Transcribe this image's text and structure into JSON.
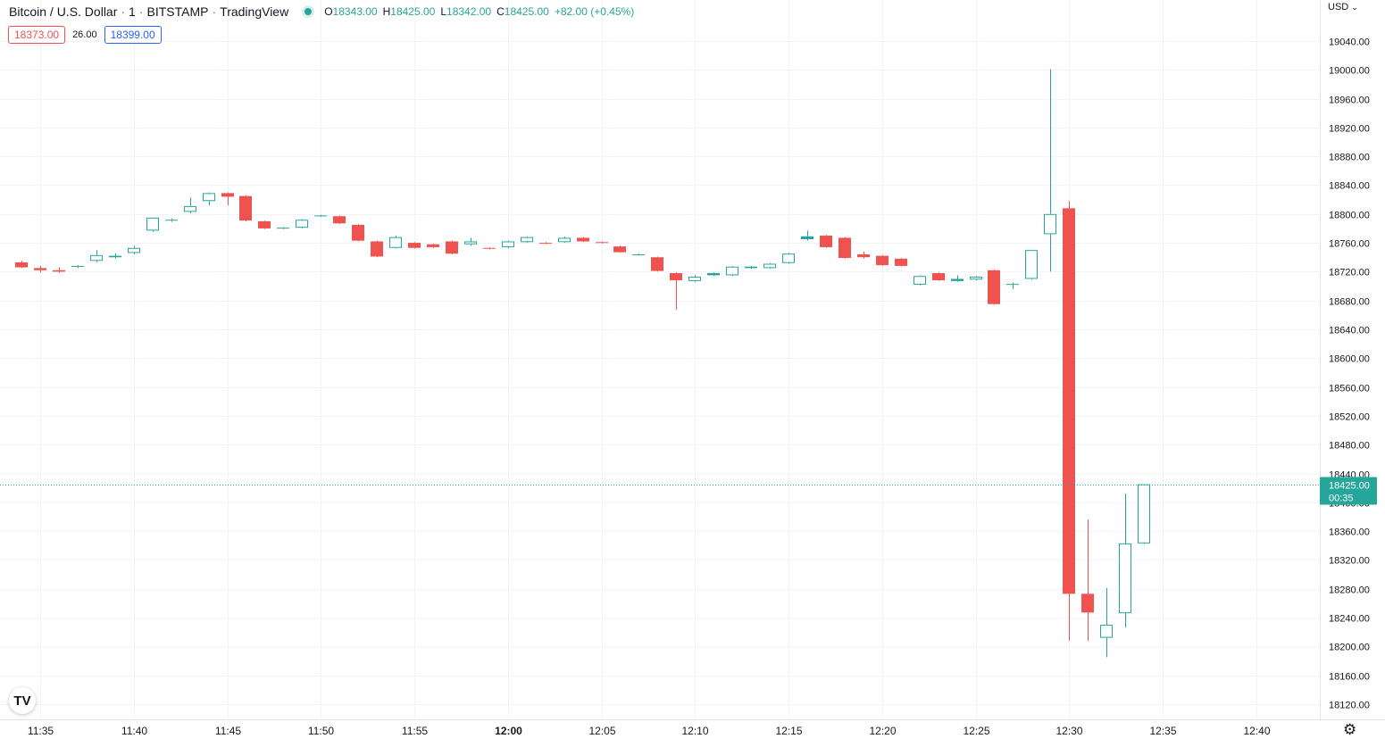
{
  "header": {
    "symbol_name": "Bitcoin / U.S. Dollar",
    "interval": "1",
    "exchange": "BITSTAMP",
    "provider": "TradingView",
    "open_label": "O",
    "open_value": "18343.00",
    "high_label": "H",
    "high_value": "18425.00",
    "low_label": "L",
    "low_value": "18342.00",
    "close_label": "C",
    "close_value": "18425.00",
    "change": "+82.00 (+0.45%)"
  },
  "quote": {
    "sell": "18373.00",
    "spread": "26.00",
    "buy": "18399.00"
  },
  "currency": "USD",
  "logo_text": "TV",
  "icons": {
    "currency_dropdown": "chevron-down-icon",
    "settings": "gear-icon",
    "status": "status-dot-icon"
  },
  "colors": {
    "up": "#26a69a",
    "down": "#ef5350",
    "grid": "#f0f3fa",
    "text": "#131722"
  },
  "chart_data": {
    "type": "candlestick",
    "y_axis_ticks": [
      18120,
      18160,
      18200,
      18240,
      18280,
      18320,
      18360,
      18400,
      18440,
      18480,
      18520,
      18560,
      18600,
      18640,
      18680,
      18720,
      18760,
      18800,
      18840,
      18880,
      18920,
      18960,
      19000,
      19040
    ],
    "y_tick_labels": [
      "18120.00",
      "18160.00",
      "18200.00",
      "18240.00",
      "18280.00",
      "18320.00",
      "18360.00",
      "18400.00",
      "18440.00",
      "18480.00",
      "18520.00",
      "18560.00",
      "18600.00",
      "18640.00",
      "18680.00",
      "18720.00",
      "18760.00",
      "18800.00",
      "18840.00",
      "18880.00",
      "18920.00",
      "18960.00",
      "19000.00",
      "19040.00"
    ],
    "ylim": [
      18100,
      19080
    ],
    "x_tick_labels": [
      "11:35",
      "11:40",
      "11:45",
      "11:50",
      "11:55",
      "12:00",
      "12:05",
      "12:10",
      "12:15",
      "12:20",
      "12:25",
      "12:30",
      "12:35",
      "12:40"
    ],
    "last_price": {
      "value": 18425.0,
      "label": "18425.00",
      "countdown": "00:35"
    },
    "candles": [
      {
        "t": "11:34",
        "o": 18733,
        "h": 18735,
        "l": 18725,
        "c": 18726
      },
      {
        "t": "11:35",
        "o": 18725,
        "h": 18728,
        "l": 18719,
        "c": 18722
      },
      {
        "t": "11:36",
        "o": 18722,
        "h": 18726,
        "l": 18718,
        "c": 18720
      },
      {
        "t": "11:37",
        "o": 18727,
        "h": 18729,
        "l": 18725,
        "c": 18728
      },
      {
        "t": "11:38",
        "o": 18735,
        "h": 18750,
        "l": 18733,
        "c": 18743
      },
      {
        "t": "11:39",
        "o": 18740,
        "h": 18745,
        "l": 18738,
        "c": 18742
      },
      {
        "t": "11:40",
        "o": 18746,
        "h": 18756,
        "l": 18744,
        "c": 18753
      },
      {
        "t": "11:41",
        "o": 18777,
        "h": 18795,
        "l": 18775,
        "c": 18795
      },
      {
        "t": "11:42",
        "o": 18792,
        "h": 18794,
        "l": 18789,
        "c": 18792
      },
      {
        "t": "11:43",
        "o": 18803,
        "h": 18823,
        "l": 18801,
        "c": 18811
      },
      {
        "t": "11:44",
        "o": 18818,
        "h": 18830,
        "l": 18812,
        "c": 18829
      },
      {
        "t": "11:45",
        "o": 18829,
        "h": 18830,
        "l": 18812,
        "c": 18824
      },
      {
        "t": "11:46",
        "o": 18825,
        "h": 18826,
        "l": 18790,
        "c": 18791
      },
      {
        "t": "11:47",
        "o": 18790,
        "h": 18791,
        "l": 18779,
        "c": 18780
      },
      {
        "t": "11:48",
        "o": 18780,
        "h": 18782,
        "l": 18779,
        "c": 18781
      },
      {
        "t": "11:49",
        "o": 18781,
        "h": 18793,
        "l": 18780,
        "c": 18792
      },
      {
        "t": "11:50",
        "o": 18797,
        "h": 18799,
        "l": 18796,
        "c": 18798
      },
      {
        "t": "11:51",
        "o": 18797,
        "h": 18798,
        "l": 18786,
        "c": 18787
      },
      {
        "t": "11:52",
        "o": 18785,
        "h": 18786,
        "l": 18762,
        "c": 18763
      },
      {
        "t": "11:53",
        "o": 18762,
        "h": 18763,
        "l": 18740,
        "c": 18741
      },
      {
        "t": "11:54",
        "o": 18753,
        "h": 18770,
        "l": 18752,
        "c": 18768
      },
      {
        "t": "11:55",
        "o": 18760,
        "h": 18761,
        "l": 18752,
        "c": 18753
      },
      {
        "t": "11:56",
        "o": 18758,
        "h": 18759,
        "l": 18753,
        "c": 18754
      },
      {
        "t": "11:57",
        "o": 18762,
        "h": 18763,
        "l": 18744,
        "c": 18745
      },
      {
        "t": "11:58",
        "o": 18758,
        "h": 18767,
        "l": 18756,
        "c": 18762
      },
      {
        "t": "11:59",
        "o": 18753,
        "h": 18754,
        "l": 18751,
        "c": 18752
      },
      {
        "t": "12:00",
        "o": 18754,
        "h": 18763,
        "l": 18752,
        "c": 18762
      },
      {
        "t": "12:01",
        "o": 18761,
        "h": 18769,
        "l": 18760,
        "c": 18768
      },
      {
        "t": "12:02",
        "o": 18760,
        "h": 18761,
        "l": 18758,
        "c": 18759
      },
      {
        "t": "12:03",
        "o": 18761,
        "h": 18769,
        "l": 18760,
        "c": 18767
      },
      {
        "t": "12:04",
        "o": 18767,
        "h": 18768,
        "l": 18761,
        "c": 18762
      },
      {
        "t": "12:05",
        "o": 18761,
        "h": 18762,
        "l": 18759,
        "c": 18760
      },
      {
        "t": "12:06",
        "o": 18755,
        "h": 18756,
        "l": 18746,
        "c": 18747
      },
      {
        "t": "12:07",
        "o": 18744,
        "h": 18745,
        "l": 18743,
        "c": 18744
      },
      {
        "t": "12:08",
        "o": 18740,
        "h": 18741,
        "l": 18720,
        "c": 18721
      },
      {
        "t": "12:09",
        "o": 18718,
        "h": 18719,
        "l": 18667,
        "c": 18708
      },
      {
        "t": "12:10",
        "o": 18707,
        "h": 18715,
        "l": 18706,
        "c": 18713
      },
      {
        "t": "12:11",
        "o": 18715,
        "h": 18719,
        "l": 18714,
        "c": 18718
      },
      {
        "t": "12:12",
        "o": 18715,
        "h": 18728,
        "l": 18714,
        "c": 18727
      },
      {
        "t": "12:13",
        "o": 18725,
        "h": 18728,
        "l": 18724,
        "c": 18727
      },
      {
        "t": "12:14",
        "o": 18725,
        "h": 18732,
        "l": 18724,
        "c": 18731
      },
      {
        "t": "12:15",
        "o": 18732,
        "h": 18746,
        "l": 18731,
        "c": 18745
      },
      {
        "t": "12:16",
        "o": 18765,
        "h": 18777,
        "l": 18763,
        "c": 18769
      },
      {
        "t": "12:17",
        "o": 18770,
        "h": 18771,
        "l": 18753,
        "c": 18754
      },
      {
        "t": "12:18",
        "o": 18767,
        "h": 18768,
        "l": 18738,
        "c": 18739
      },
      {
        "t": "12:19",
        "o": 18744,
        "h": 18748,
        "l": 18738,
        "c": 18740
      },
      {
        "t": "12:20",
        "o": 18742,
        "h": 18743,
        "l": 18728,
        "c": 18729
      },
      {
        "t": "12:21",
        "o": 18738,
        "h": 18739,
        "l": 18727,
        "c": 18728
      },
      {
        "t": "12:22",
        "o": 18702,
        "h": 18715,
        "l": 18701,
        "c": 18714
      },
      {
        "t": "12:23",
        "o": 18718,
        "h": 18719,
        "l": 18707,
        "c": 18708
      },
      {
        "t": "12:24",
        "o": 18707,
        "h": 18715,
        "l": 18706,
        "c": 18710
      },
      {
        "t": "12:25",
        "o": 18709,
        "h": 18714,
        "l": 18708,
        "c": 18713
      },
      {
        "t": "12:26",
        "o": 18722,
        "h": 18723,
        "l": 18674,
        "c": 18675
      },
      {
        "t": "12:27",
        "o": 18702,
        "h": 18705,
        "l": 18696,
        "c": 18703
      },
      {
        "t": "12:28",
        "o": 18710,
        "h": 18750,
        "l": 18709,
        "c": 18750
      },
      {
        "t": "12:29",
        "o": 18772,
        "h": 19001,
        "l": 18720,
        "c": 18800
      },
      {
        "t": "12:30",
        "o": 18808,
        "h": 18818,
        "l": 18208,
        "c": 18273
      },
      {
        "t": "12:31",
        "o": 18273,
        "h": 18376,
        "l": 18208,
        "c": 18247
      },
      {
        "t": "12:32",
        "o": 18212,
        "h": 18281,
        "l": 18185,
        "c": 18230
      },
      {
        "t": "12:33",
        "o": 18246,
        "h": 18412,
        "l": 18226,
        "c": 18343
      },
      {
        "t": "12:34",
        "o": 18343,
        "h": 18425,
        "l": 18342,
        "c": 18425
      }
    ]
  }
}
